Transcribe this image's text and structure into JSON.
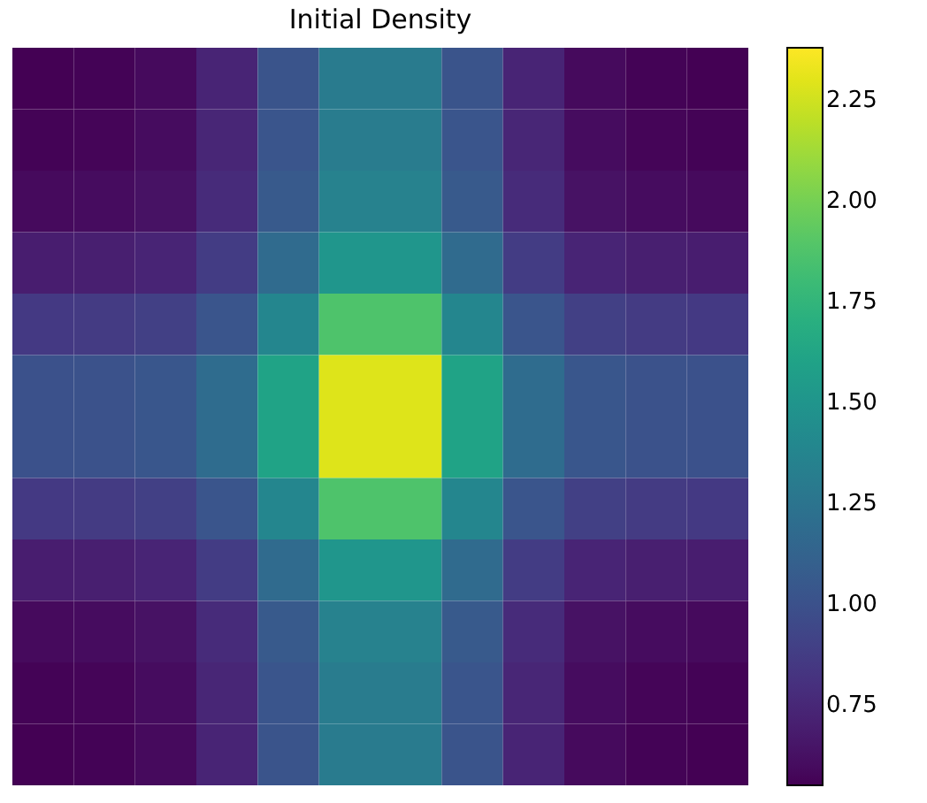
{
  "chart_data": {
    "type": "heatmap",
    "title": "Initial Density",
    "categories": [
      null,
      null,
      null,
      null,
      null,
      null,
      null,
      null,
      null,
      null,
      null,
      null
    ],
    "y_categories": [
      null,
      null,
      null,
      null,
      null,
      null,
      null,
      null,
      null,
      null,
      null,
      null
    ],
    "cells": [
      [
        0.55,
        0.56,
        0.59,
        0.73,
        1.02,
        1.3,
        1.3,
        1.02,
        0.73,
        0.59,
        0.56,
        0.55
      ],
      [
        0.56,
        0.57,
        0.6,
        0.74,
        1.03,
        1.31,
        1.31,
        1.03,
        0.74,
        0.6,
        0.57,
        0.56
      ],
      [
        0.59,
        0.6,
        0.63,
        0.77,
        1.06,
        1.35,
        1.35,
        1.06,
        0.77,
        0.63,
        0.6,
        0.59
      ],
      [
        0.69,
        0.7,
        0.73,
        0.87,
        1.18,
        1.51,
        1.51,
        1.18,
        0.87,
        0.73,
        0.7,
        0.69
      ],
      [
        0.85,
        0.86,
        0.89,
        1.03,
        1.39,
        1.87,
        1.87,
        1.39,
        1.03,
        0.89,
        0.86,
        0.85
      ],
      [
        1.0,
        1.01,
        1.04,
        1.19,
        1.61,
        2.29,
        2.29,
        1.61,
        1.19,
        1.04,
        1.01,
        1.0
      ],
      [
        1.0,
        1.01,
        1.04,
        1.19,
        1.61,
        2.29,
        2.29,
        1.61,
        1.19,
        1.04,
        1.01,
        1.0
      ],
      [
        0.85,
        0.86,
        0.89,
        1.03,
        1.39,
        1.87,
        1.87,
        1.39,
        1.03,
        0.89,
        0.86,
        0.85
      ],
      [
        0.69,
        0.7,
        0.73,
        0.87,
        1.18,
        1.51,
        1.51,
        1.18,
        0.87,
        0.73,
        0.7,
        0.69
      ],
      [
        0.59,
        0.6,
        0.63,
        0.77,
        1.06,
        1.35,
        1.35,
        1.06,
        0.77,
        0.63,
        0.6,
        0.59
      ],
      [
        0.56,
        0.57,
        0.6,
        0.74,
        1.03,
        1.31,
        1.31,
        1.03,
        0.74,
        0.6,
        0.57,
        0.56
      ],
      [
        0.55,
        0.56,
        0.59,
        0.73,
        1.02,
        1.3,
        1.3,
        1.02,
        0.73,
        0.59,
        0.56,
        0.55
      ]
    ],
    "clim": [
      0.55,
      2.38
    ],
    "cticks": [
      0.75,
      {
        "value": 1.0,
        "label": "1.00"
      },
      1.25,
      {
        "value": 1.5,
        "label": "1.50"
      },
      1.75,
      {
        "value": 2.0,
        "label": "2.00"
      },
      2.25
    ],
    "tick_labels": false
  }
}
